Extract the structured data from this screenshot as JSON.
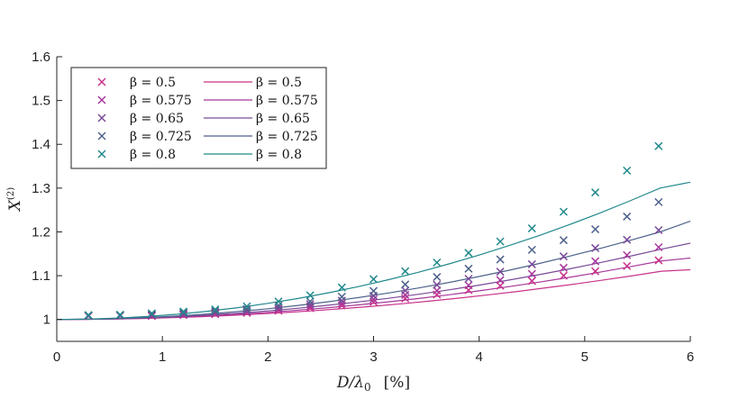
{
  "chart_data": {
    "type": "scatter+line",
    "title": "",
    "xlabel_main": "D/λ",
    "xlabel_sub": "0",
    "xlabel_unit": "[%]",
    "ylabel_main": "X",
    "ylabel_sup": "(2)",
    "xlim": [
      0,
      6
    ],
    "ylim": [
      0.95,
      1.6
    ],
    "xticks": [
      "0",
      "1",
      "2",
      "3",
      "4",
      "5",
      "6"
    ],
    "yticks": [
      "1",
      "1.1",
      "1.2",
      "1.3",
      "1.4",
      "1.5",
      "1.6"
    ],
    "grid": false,
    "legend_position": "top-left",
    "colors": [
      "#c8328a",
      "#a8379a",
      "#7a4a98",
      "#4e628c",
      "#22898c"
    ],
    "x_markers": [
      0.3,
      0.6,
      0.9,
      1.2,
      1.5,
      1.8,
      2.1,
      2.4,
      2.7,
      3.0,
      3.3,
      3.6,
      3.9,
      4.2,
      4.5,
      4.8,
      5.1,
      5.4,
      5.7
    ],
    "series": [
      {
        "beta": 0.5,
        "marker_label": "β = 0.5",
        "line_label": "β = 0.5",
        "markers": [
          1.008,
          1.009,
          1.008,
          1.01,
          1.012,
          1.015,
          1.02,
          1.026,
          1.032,
          1.04,
          1.048,
          1.057,
          1.067,
          1.077,
          1.088,
          1.1,
          1.11,
          1.122,
          1.135
        ],
        "curve": [
          1.0,
          1.0003,
          1.001,
          1.0023,
          1.004,
          1.0063,
          1.009,
          1.0123,
          1.016,
          1.0203,
          1.025,
          1.0303,
          1.036,
          1.0423,
          1.049,
          1.0563,
          1.064,
          1.0723,
          1.081,
          1.0903,
          1.1,
          1.1103,
          1.1135
        ]
      },
      {
        "beta": 0.575,
        "marker_label": "β = 0.575",
        "line_label": "β = 0.575",
        "markers": [
          1.008,
          1.009,
          1.009,
          1.011,
          1.014,
          1.017,
          1.023,
          1.03,
          1.037,
          1.046,
          1.056,
          1.066,
          1.078,
          1.09,
          1.104,
          1.118,
          1.133,
          1.147,
          1.165
        ],
        "curve": [
          1.0,
          1.0003,
          1.0013,
          1.003,
          1.0053,
          1.0083,
          1.012,
          1.0163,
          1.0213,
          1.027,
          1.0333,
          1.0403,
          1.048,
          1.0563,
          1.0653,
          1.075,
          1.0853,
          1.0963,
          1.108,
          1.1203,
          1.1333,
          1.1403
        ]
      },
      {
        "beta": 0.65,
        "marker_label": "β = 0.65",
        "line_label": "β = 0.65",
        "markers": [
          1.009,
          1.009,
          1.01,
          1.013,
          1.016,
          1.02,
          1.027,
          1.035,
          1.043,
          1.054,
          1.066,
          1.079,
          1.093,
          1.109,
          1.126,
          1.144,
          1.163,
          1.182,
          1.204
        ],
        "curve": [
          1.0,
          1.0004,
          1.0016,
          1.0036,
          1.0064,
          1.01,
          1.0144,
          1.0196,
          1.0256,
          1.0324,
          1.04,
          1.0484,
          1.0576,
          1.0676,
          1.0784,
          1.09,
          1.1024,
          1.1156,
          1.1296,
          1.1444,
          1.16,
          1.1743
        ]
      },
      {
        "beta": 0.725,
        "marker_label": "β = 0.725",
        "line_label": "β = 0.725",
        "markers": [
          1.009,
          1.01,
          1.012,
          1.015,
          1.019,
          1.024,
          1.032,
          1.041,
          1.052,
          1.065,
          1.08,
          1.097,
          1.116,
          1.137,
          1.159,
          1.181,
          1.206,
          1.235,
          1.268
        ],
        "curve": [
          1.0,
          1.0005,
          1.002,
          1.0045,
          1.008,
          1.0125,
          1.018,
          1.0245,
          1.032,
          1.0405,
          1.05,
          1.0605,
          1.072,
          1.0845,
          1.098,
          1.1125,
          1.128,
          1.1445,
          1.162,
          1.1805,
          1.2,
          1.2245
        ]
      },
      {
        "beta": 0.8,
        "marker_label": "β = 0.8",
        "line_label": "β = 0.8",
        "markers": [
          1.01,
          1.011,
          1.014,
          1.018,
          1.023,
          1.03,
          1.041,
          1.055,
          1.073,
          1.092,
          1.11,
          1.13,
          1.152,
          1.178,
          1.208,
          1.246,
          1.29,
          1.34,
          1.396
        ],
        "curve": [
          1.0,
          1.0008,
          1.003,
          1.0068,
          1.012,
          1.0188,
          1.027,
          1.0368,
          1.048,
          1.0608,
          1.075,
          1.0908,
          1.108,
          1.1268,
          1.147,
          1.1688,
          1.192,
          1.2168,
          1.243,
          1.2708,
          1.3,
          1.3135
        ]
      }
    ]
  }
}
